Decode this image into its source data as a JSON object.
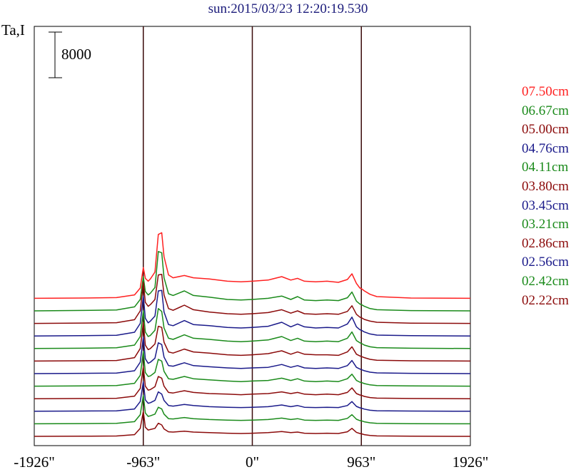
{
  "title": "sun:2015/03/23 12:20:19.530",
  "chart_data": {
    "type": "line",
    "ylabel": "Ta,I",
    "scale_bar": {
      "value": 8000,
      "label": "8000"
    },
    "x_ticks": [
      -1926,
      -963,
      0,
      963,
      1926
    ],
    "x_tick_labels": [
      "-1926\"",
      "-963\"",
      "0\"",
      "963\"",
      "1926\""
    ],
    "xlim": [
      -1926,
      1926
    ],
    "vertical_lines": [
      -963,
      0,
      963
    ],
    "stack_offset_per_series": 2200,
    "x": [
      -1926,
      -1500,
      -1200,
      -1040,
      -990,
      -963,
      -945,
      -920,
      -900,
      -860,
      -830,
      -800,
      -780,
      -740,
      -700,
      -600,
      -520,
      -380,
      -220,
      -100,
      0,
      140,
      260,
      340,
      400,
      460,
      560,
      660,
      760,
      840,
      880,
      920,
      950,
      963,
      990,
      1040,
      1100,
      1400,
      1926
    ],
    "series": [
      {
        "name": "07.50cm",
        "color": "#ff2020",
        "values": [
          0,
          50,
          120,
          600,
          1800,
          5400,
          3500,
          3000,
          3400,
          4600,
          11200,
          11500,
          7300,
          4100,
          3600,
          4000,
          3600,
          3400,
          3000,
          2900,
          3000,
          3200,
          3800,
          3200,
          3500,
          3000,
          2900,
          3000,
          2800,
          3300,
          4300,
          2600,
          1800,
          1700,
          1300,
          700,
          300,
          50,
          0
        ]
      },
      {
        "name": "06.67cm",
        "color": "#1a8a1a",
        "values": [
          0,
          80,
          150,
          700,
          2000,
          6000,
          3400,
          2800,
          3100,
          4100,
          10400,
          10200,
          5800,
          3000,
          2700,
          3500,
          2700,
          2400,
          2000,
          1900,
          2000,
          2200,
          2600,
          2000,
          2500,
          1900,
          1800,
          1900,
          1800,
          2300,
          3300,
          1700,
          1200,
          1100,
          800,
          400,
          200,
          50,
          0
        ]
      },
      {
        "name": "05.00cm",
        "color": "#8b0a0a",
        "values": [
          0,
          60,
          120,
          650,
          2200,
          7200,
          3700,
          3000,
          3300,
          4200,
          8500,
          8600,
          5000,
          2600,
          2300,
          3200,
          2400,
          2000,
          1700,
          1600,
          1700,
          1900,
          2400,
          1800,
          2200,
          1700,
          1600,
          1700,
          1600,
          2100,
          3100,
          1600,
          1100,
          1000,
          700,
          400,
          200,
          50,
          0
        ]
      },
      {
        "name": "04.76cm",
        "color": "#1a1a8a",
        "values": [
          0,
          60,
          120,
          650,
          2200,
          7000,
          3100,
          2300,
          2600,
          3500,
          7900,
          8000,
          4200,
          2000,
          1800,
          2700,
          2000,
          1800,
          1500,
          1400,
          1500,
          1700,
          2400,
          1600,
          2100,
          1600,
          1400,
          1500,
          1400,
          2100,
          3300,
          1600,
          1100,
          1000,
          700,
          350,
          150,
          50,
          0
        ]
      },
      {
        "name": "04.11cm",
        "color": "#1a8a1a",
        "values": [
          0,
          50,
          120,
          600,
          2100,
          6600,
          2900,
          2100,
          2300,
          3200,
          7000,
          6500,
          3600,
          1800,
          1600,
          2400,
          1800,
          1600,
          1300,
          1200,
          1300,
          1500,
          2100,
          1400,
          1800,
          1300,
          1200,
          1300,
          1200,
          1800,
          2900,
          1400,
          1000,
          900,
          600,
          300,
          150,
          50,
          0
        ]
      },
      {
        "name": "03.80cm",
        "color": "#8b0a0a",
        "values": [
          0,
          50,
          100,
          600,
          2200,
          6800,
          2800,
          2000,
          2200,
          3000,
          6100,
          5900,
          3300,
          1600,
          1400,
          2100,
          1600,
          1400,
          1100,
          1000,
          1100,
          1300,
          1800,
          1200,
          1600,
          1200,
          1100,
          1100,
          1000,
          1600,
          2500,
          1200,
          900,
          800,
          600,
          300,
          150,
          50,
          0
        ]
      },
      {
        "name": "03.45cm",
        "color": "#1a1a8a",
        "values": [
          0,
          50,
          100,
          500,
          2000,
          6400,
          2600,
          1800,
          2000,
          2700,
          5400,
          5100,
          2900,
          1400,
          1300,
          1900,
          1400,
          1200,
          1000,
          900,
          1000,
          1100,
          1600,
          1100,
          1400,
          1000,
          900,
          1000,
          900,
          1400,
          2300,
          1100,
          800,
          700,
          500,
          250,
          120,
          50,
          0
        ]
      },
      {
        "name": "03.21cm",
        "color": "#1a8a1a",
        "values": [
          0,
          50,
          100,
          500,
          1900,
          6100,
          2400,
          1700,
          1800,
          2400,
          4700,
          4400,
          2600,
          1300,
          1200,
          1700,
          1300,
          1100,
          900,
          800,
          900,
          1000,
          1400,
          1000,
          1300,
          900,
          800,
          900,
          800,
          1300,
          2100,
          1000,
          700,
          650,
          450,
          220,
          100,
          50,
          0
        ]
      },
      {
        "name": "02.86cm",
        "color": "#8b0a0a",
        "values": [
          0,
          40,
          80,
          450,
          1800,
          5600,
          2200,
          1500,
          1600,
          2100,
          3900,
          3600,
          2200,
          1100,
          1000,
          1400,
          1100,
          900,
          800,
          700,
          800,
          900,
          1200,
          900,
          1100,
          800,
          700,
          800,
          700,
          1100,
          1900,
          900,
          650,
          600,
          400,
          200,
          100,
          40,
          0
        ]
      },
      {
        "name": "02.56cm",
        "color": "#1a1a8a",
        "values": [
          0,
          40,
          80,
          400,
          1700,
          5200,
          2000,
          1400,
          1500,
          1900,
          3400,
          3000,
          1900,
          1000,
          900,
          1200,
          1000,
          800,
          700,
          650,
          700,
          800,
          1100,
          800,
          1000,
          700,
          650,
          700,
          650,
          1000,
          1700,
          850,
          600,
          550,
          380,
          180,
          90,
          40,
          0
        ]
      },
      {
        "name": "02.42cm",
        "color": "#1a8a1a",
        "values": [
          0,
          40,
          70,
          380,
          1600,
          5000,
          1900,
          1300,
          1400,
          1700,
          2900,
          2600,
          1700,
          900,
          850,
          1100,
          900,
          750,
          650,
          600,
          650,
          750,
          1000,
          750,
          900,
          650,
          600,
          650,
          600,
          950,
          1600,
          800,
          560,
          520,
          350,
          170,
          80,
          30,
          0
        ]
      },
      {
        "name": "02.22cm",
        "color": "#8b0a0a",
        "values": [
          0,
          30,
          60,
          300,
          1400,
          4400,
          1600,
          1100,
          1200,
          1400,
          2300,
          2000,
          1300,
          800,
          750,
          900,
          750,
          650,
          550,
          500,
          550,
          650,
          850,
          650,
          750,
          550,
          500,
          550,
          500,
          800,
          1400,
          700,
          500,
          450,
          300,
          150,
          70,
          30,
          0
        ]
      }
    ]
  }
}
